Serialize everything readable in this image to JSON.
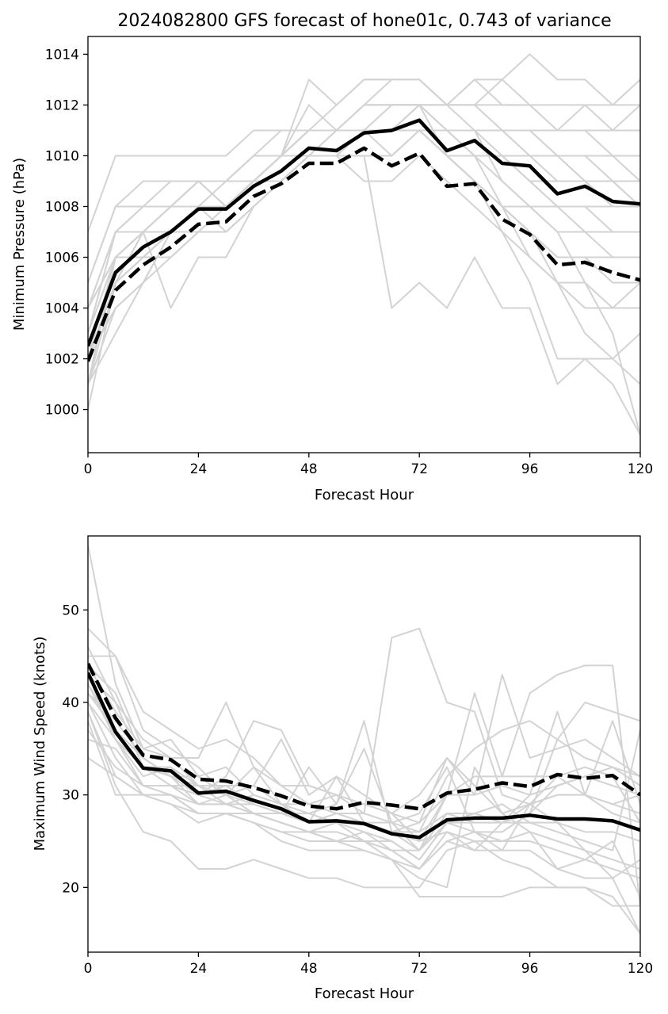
{
  "chart_data": [
    {
      "type": "line",
      "title": "2024082800 GFS forecast of hone01c, 0.743 of variance",
      "xlabel": "Forecast Hour",
      "ylabel": "Minimum Pressure (hPa)",
      "xlim": [
        0,
        120
      ],
      "ylim": [
        998.3,
        1014.7
      ],
      "xticks": [
        0,
        24,
        48,
        72,
        96,
        120
      ],
      "yticks": [
        1000,
        1002,
        1004,
        1006,
        1008,
        1010,
        1012,
        1014
      ],
      "grid": false,
      "x": [
        0,
        6,
        12,
        18,
        24,
        30,
        36,
        42,
        48,
        54,
        60,
        66,
        72,
        78,
        84,
        90,
        96,
        102,
        108,
        114,
        120
      ],
      "ensemble_color": "#d3d3d3",
      "ensemble": [
        [
          1000,
          1005,
          1006,
          1007,
          1008,
          1009,
          1010,
          1011,
          1011,
          1011,
          1012,
          1012,
          1012,
          1011,
          1010,
          1009,
          1008,
          1007,
          1005,
          1003,
          999
        ],
        [
          1001,
          1006,
          1007,
          1008,
          1009,
          1009,
          1009,
          1010,
          1010,
          1010,
          1010,
          1010,
          1011,
          1010,
          1009,
          1008,
          1007,
          1005,
          1003,
          1002,
          1001
        ],
        [
          1002,
          1004,
          1005,
          1007,
          1007,
          1008,
          1009,
          1010,
          1011,
          1012,
          1013,
          1013,
          1013,
          1012,
          1012,
          1011,
          1011,
          1010,
          1009,
          1009,
          1008
        ],
        [
          1003,
          1007,
          1008,
          1008,
          1009,
          1008,
          1009,
          1010,
          1010,
          1010,
          1011,
          1010,
          1011,
          1010,
          1009,
          1008,
          1006,
          1005,
          1005,
          1004,
          1005
        ],
        [
          1004,
          1006,
          1007,
          1007,
          1008,
          1008,
          1009,
          1009,
          1010,
          1011,
          1011,
          1011,
          1011,
          1011,
          1011,
          1011,
          1010,
          1010,
          1010,
          1010,
          1010
        ],
        [
          1005,
          1008,
          1009,
          1009,
          1009,
          1008,
          1009,
          1009,
          1010,
          1010,
          1011,
          1011,
          1011,
          1011,
          1010,
          1010,
          1009,
          1009,
          1009,
          1008,
          1008
        ],
        [
          1007,
          1010,
          1010,
          1010,
          1010,
          1010,
          1011,
          1011,
          1011,
          1011,
          1011,
          1011,
          1011,
          1011,
          1011,
          1011,
          1011,
          1011,
          1011,
          1011,
          1011
        ],
        [
          1002,
          1005,
          1007,
          1007,
          1008,
          1007,
          1008,
          1009,
          1010,
          1010,
          1011,
          1011,
          1012,
          1010,
          1009,
          1007,
          1005,
          1002,
          1002,
          1002,
          1003
        ],
        [
          1001,
          1005,
          1006,
          1006,
          1007,
          1007,
          1008,
          1009,
          1010,
          1010,
          1010,
          1004,
          1005,
          1004,
          1006,
          1004,
          1004,
          1001,
          1002,
          1001,
          999
        ],
        [
          1003,
          1006,
          1006,
          1007,
          1008,
          1008,
          1009,
          1010,
          1011,
          1011,
          1011,
          1012,
          1012,
          1011,
          1011,
          1009,
          1008,
          1007,
          1007,
          1007,
          1007
        ],
        [
          1004,
          1006,
          1007,
          1008,
          1009,
          1009,
          1010,
          1010,
          1012,
          1011,
          1011,
          1011,
          1012,
          1011,
          1010,
          1008,
          1007,
          1006,
          1006,
          1006,
          1006
        ],
        [
          1002,
          1006,
          1007,
          1008,
          1008,
          1008,
          1009,
          1009,
          1010,
          1010,
          1009,
          1009,
          1010,
          1009,
          1008,
          1007,
          1006,
          1005,
          1004,
          1004,
          1004
        ],
        [
          1004,
          1007,
          1007,
          1004,
          1006,
          1006,
          1008,
          1009,
          1010,
          1010,
          1010,
          1010,
          1011,
          1010,
          1009,
          1008,
          1008,
          1008,
          1008,
          1008,
          1008
        ],
        [
          1003,
          1006,
          1007,
          1008,
          1009,
          1009,
          1010,
          1010,
          1011,
          1011,
          1012,
          1012,
          1012,
          1012,
          1012,
          1011,
          1011,
          1010,
          1009,
          1008,
          1008
        ],
        [
          1002,
          1005,
          1007,
          1007,
          1008,
          1008,
          1009,
          1010,
          1011,
          1011,
          1012,
          1013,
          1013,
          1012,
          1012,
          1013,
          1014,
          1013,
          1013,
          1012,
          1012
        ],
        [
          1002,
          1005,
          1006,
          1006,
          1007,
          1007,
          1008,
          1009,
          1010,
          1010,
          1010,
          1010,
          1011,
          1011,
          1011,
          1011,
          1011,
          1011,
          1011,
          1011,
          1011
        ],
        [
          1001,
          1004,
          1005,
          1006,
          1007,
          1007,
          1008,
          1009,
          1010,
          1010,
          1011,
          1011,
          1012,
          1011,
          1010,
          1010,
          1009,
          1008,
          1007,
          1006,
          1006
        ],
        [
          1003,
          1007,
          1008,
          1009,
          1009,
          1008,
          1009,
          1010,
          1013,
          1012,
          1013,
          1013,
          1013,
          1012,
          1013,
          1013,
          1012,
          1011,
          1012,
          1011,
          1012
        ],
        [
          1001,
          1003,
          1005,
          1007,
          1008,
          1008,
          1009,
          1010,
          1010,
          1010,
          1011,
          1011,
          1011,
          1010,
          1010,
          1010,
          1010,
          1009,
          1009,
          1009,
          1008
        ],
        [
          1004,
          1007,
          1007,
          1007,
          1008,
          1008,
          1009,
          1009,
          1010,
          1010,
          1011,
          1011,
          1011,
          1010,
          1009,
          1008,
          1007,
          1006,
          1006,
          1005,
          1005
        ],
        [
          1002,
          1005,
          1006,
          1007,
          1008,
          1008,
          1009,
          1010,
          1011,
          1011,
          1011,
          1011,
          1012,
          1012,
          1013,
          1012,
          1012,
          1011,
          1011,
          1010,
          1009
        ],
        [
          1001,
          1006,
          1006,
          1007,
          1008,
          1008,
          1009,
          1010,
          1010,
          1011,
          1011,
          1012,
          1012,
          1011,
          1011,
          1010,
          1009,
          1008,
          1008,
          1007,
          1007
        ],
        [
          1005,
          1008,
          1008,
          1008,
          1009,
          1009,
          1010,
          1010,
          1011,
          1011,
          1012,
          1012,
          1012,
          1012,
          1011,
          1011,
          1010,
          1010,
          1010,
          1009,
          1009
        ],
        [
          1002,
          1006,
          1007,
          1008,
          1008,
          1008,
          1009,
          1010,
          1011,
          1011,
          1012,
          1012,
          1012,
          1012,
          1012,
          1012,
          1012,
          1012,
          1012,
          1012,
          1013
        ]
      ],
      "series": [
        {
          "style": "solid",
          "color": "#000000",
          "values": [
            1002.5,
            1005.4,
            1006.4,
            1007.0,
            1007.9,
            1007.9,
            1008.8,
            1009.4,
            1010.3,
            1010.2,
            1010.9,
            1011.0,
            1011.4,
            1010.2,
            1010.6,
            1009.7,
            1009.6,
            1008.5,
            1008.8,
            1008.2,
            1008.1
          ]
        },
        {
          "style": "dashed",
          "color": "#000000",
          "values": [
            1001.9,
            1004.7,
            1005.7,
            1006.4,
            1007.3,
            1007.4,
            1008.4,
            1008.9,
            1009.7,
            1009.7,
            1010.3,
            1009.6,
            1010.1,
            1008.8,
            1008.9,
            1007.5,
            1006.9,
            1005.7,
            1005.8,
            1005.4,
            1005.1
          ]
        }
      ]
    },
    {
      "type": "line",
      "title": "",
      "xlabel": "Forecast Hour",
      "ylabel": "Maximum Wind Speed (knots)",
      "xlim": [
        0,
        120
      ],
      "ylim": [
        13,
        58
      ],
      "xticks": [
        0,
        24,
        48,
        72,
        96,
        120
      ],
      "yticks": [
        20,
        30,
        40,
        50
      ],
      "grid": false,
      "x": [
        0,
        6,
        12,
        18,
        24,
        30,
        36,
        42,
        48,
        54,
        60,
        66,
        72,
        78,
        84,
        90,
        96,
        102,
        108,
        114,
        120
      ],
      "ensemble_color": "#d3d3d3",
      "ensemble": [
        [
          57,
          42,
          35,
          34,
          31,
          30,
          29,
          28,
          28,
          27,
          27,
          26,
          26,
          28,
          27,
          27,
          27,
          27,
          26,
          26,
          25
        ],
        [
          48,
          45,
          37,
          35,
          33,
          30,
          31,
          29,
          29,
          30,
          29,
          28,
          27,
          34,
          30,
          31,
          30,
          31,
          32,
          31,
          30
        ],
        [
          46,
          40,
          36,
          34,
          34,
          40,
          33,
          31,
          31,
          30,
          29,
          28,
          30,
          34,
          31,
          28,
          29,
          30,
          30,
          28,
          27
        ],
        [
          45,
          45,
          39,
          37,
          35,
          36,
          34,
          31,
          29,
          28,
          28,
          27,
          26,
          32,
          35,
          37,
          38,
          36,
          34,
          33,
          32
        ],
        [
          44,
          41,
          34,
          32,
          32,
          33,
          30,
          29,
          28,
          29,
          38,
          26,
          27,
          30,
          30,
          43,
          34,
          35,
          36,
          34,
          32
        ],
        [
          43,
          40,
          33,
          33,
          30,
          32,
          38,
          37,
          31,
          30,
          28,
          47,
          48,
          40,
          39,
          30,
          29,
          30,
          30,
          38,
          29
        ],
        [
          42,
          37,
          33,
          31,
          31,
          29,
          30,
          29,
          27,
          28,
          27,
          26,
          24,
          30,
          41,
          32,
          41,
          43,
          44,
          44,
          18
        ],
        [
          41,
          38,
          34,
          32,
          29,
          30,
          28,
          27,
          26,
          26,
          25,
          25,
          23,
          27,
          27,
          27,
          28,
          31,
          32,
          33,
          31
        ],
        [
          40,
          36,
          31,
          30,
          28,
          28,
          28,
          27,
          26,
          25,
          26,
          24,
          24,
          27,
          26,
          26,
          28,
          36,
          40,
          39,
          38
        ],
        [
          40,
          34,
          30,
          30,
          29,
          29,
          28,
          28,
          27,
          27,
          26,
          25,
          23,
          27,
          28,
          27,
          30,
          39,
          30,
          29,
          28
        ],
        [
          39,
          32,
          30,
          30,
          28,
          28,
          27,
          26,
          26,
          25,
          25,
          24,
          22,
          25,
          26,
          25,
          26,
          25,
          24,
          23,
          22
        ],
        [
          39,
          31,
          26,
          25,
          22,
          22,
          23,
          22,
          21,
          21,
          20,
          20,
          20,
          24,
          25,
          23,
          22,
          20,
          20,
          19,
          15
        ],
        [
          38,
          30,
          30,
          29,
          28,
          28,
          27,
          26,
          25,
          25,
          25,
          24,
          22,
          26,
          25,
          25,
          25,
          24,
          23,
          22,
          21
        ],
        [
          37,
          33,
          31,
          31,
          29,
          29,
          28,
          27,
          26,
          27,
          25,
          23,
          19,
          19,
          19,
          19,
          20,
          20,
          20,
          18,
          18
        ],
        [
          36,
          35,
          31,
          31,
          30,
          29,
          28,
          27,
          26,
          25,
          24,
          23,
          21,
          20,
          33,
          28,
          26,
          22,
          21,
          21,
          23
        ],
        [
          34,
          32,
          30,
          29,
          27,
          28,
          27,
          25,
          24,
          24,
          24,
          23,
          22,
          25,
          24,
          24,
          24,
          22,
          23,
          25,
          19
        ],
        [
          43,
          36,
          33,
          32,
          30,
          31,
          29,
          28,
          27,
          32,
          27,
          26,
          25,
          26,
          24,
          27,
          29,
          32,
          30,
          29,
          30
        ],
        [
          42,
          36,
          32,
          33,
          31,
          29,
          29,
          28,
          33,
          29,
          35,
          27,
          28,
          33,
          26,
          24,
          29,
          27,
          24,
          21,
          15
        ],
        [
          41,
          37,
          34,
          32,
          31,
          31,
          31,
          36,
          30,
          32,
          30,
          28,
          25,
          30,
          32,
          32,
          32,
          32,
          33,
          32,
          27
        ],
        [
          44,
          39,
          35,
          36,
          32,
          30,
          33,
          29,
          27,
          27,
          27,
          27,
          24,
          28,
          28,
          29,
          27,
          26,
          25,
          24,
          37
        ]
      ],
      "series": [
        {
          "style": "solid",
          "color": "#000000",
          "values": [
            43.2,
            36.8,
            32.9,
            32.6,
            30.2,
            30.4,
            29.4,
            28.5,
            27.1,
            27.2,
            26.9,
            25.8,
            25.4,
            27.3,
            27.5,
            27.5,
            27.8,
            27.4,
            27.4,
            27.2,
            26.2
          ]
        },
        {
          "style": "dashed",
          "color": "#000000",
          "values": [
            44.2,
            38.3,
            34.3,
            33.8,
            31.7,
            31.5,
            30.8,
            29.9,
            28.8,
            28.5,
            29.2,
            28.9,
            28.5,
            30.2,
            30.6,
            31.3,
            30.9,
            32.2,
            31.8,
            32.1,
            30.0
          ]
        }
      ]
    }
  ]
}
